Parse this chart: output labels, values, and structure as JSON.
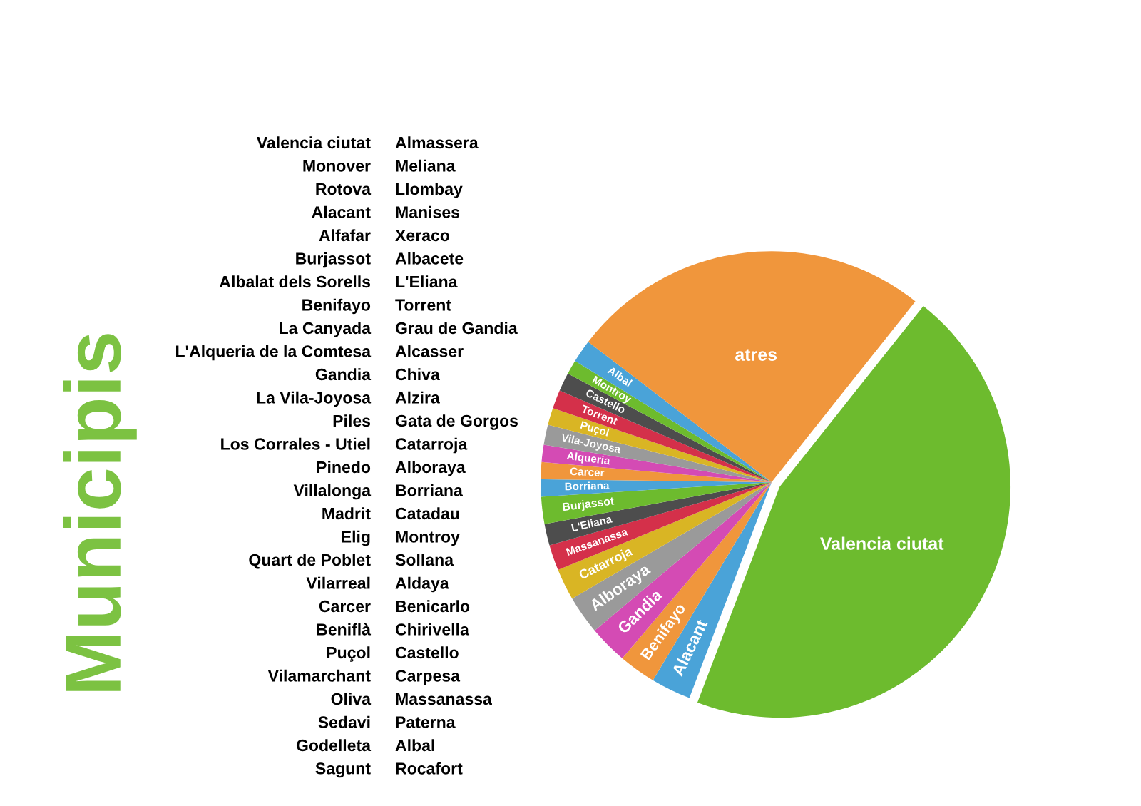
{
  "chart_data": {
    "type": "pie",
    "title": "Municipis",
    "categories": [
      "Valencia ciutat",
      "Alacant",
      "Benifayo",
      "Gandia",
      "Alboraya",
      "Catarroja",
      "Massanassa",
      "L'Eliana",
      "Burjassot",
      "Borriana",
      "Carcer",
      "Alqueria",
      "Vila-Joyosa",
      "Puçol",
      "Torrent",
      "Castello",
      "Montroy",
      "Albal",
      "atres"
    ],
    "values": [
      45.1,
      2.8,
      2.6,
      2.7,
      2.7,
      2.2,
      1.8,
      1.5,
      1.9,
      1.2,
      1.2,
      1.2,
      1.4,
      1.2,
      1.3,
      1.3,
      1.0,
      1.6,
      25.3
    ],
    "colors": [
      "#6dbb2e",
      "#4aa3d8",
      "#f0963c",
      "#d44bb4",
      "#9a9a9a",
      "#d9b524",
      "#d4304a",
      "#4d4d4d",
      "#6dbb2e",
      "#4aa3d8",
      "#f0963c",
      "#d44bb4",
      "#9a9a9a",
      "#d9b524",
      "#d4304a",
      "#4d4d4d",
      "#6dbb2e",
      "#4aa3d8",
      "#f0963c"
    ],
    "annotations": [
      "Valencia ciutat",
      "Monover",
      "Rotova",
      "Alacant",
      "Alfafar",
      "Burjassot",
      "Albalat dels Sorells",
      "Benifayo",
      "La Canyada",
      "L'Alqueria de la Comtesa",
      "Gandia",
      "La Vila-Joyosa",
      "Piles",
      "Los Corrales - Utiel",
      "Pinedo",
      "Villalonga",
      "Madrit",
      "Elig",
      "Quart de Poblet",
      "Vilarreal",
      "Carcer",
      "Beniflà",
      "Puçol",
      "Vilamarchant",
      "Oliva",
      "Sedavi",
      "Godelleta",
      "Sagunt",
      "Almassera",
      "Meliana",
      "Llombay",
      "Manises",
      "Xeraco",
      "Albacete",
      "L'Eliana",
      "Torrent",
      "Grau de Gandia",
      "Alcasser",
      "Chiva",
      "Alzira",
      "Gata de Gorgos",
      "Catarroja",
      "Alboraya",
      "Borriana",
      "Catadau",
      "Montroy",
      "Sollana",
      "Aldaya",
      "Benicarlo",
      "Chirivella",
      "Castello",
      "Carpesa",
      "Massanassa",
      "Paterna",
      "Albal",
      "Rocafort"
    ]
  }
}
